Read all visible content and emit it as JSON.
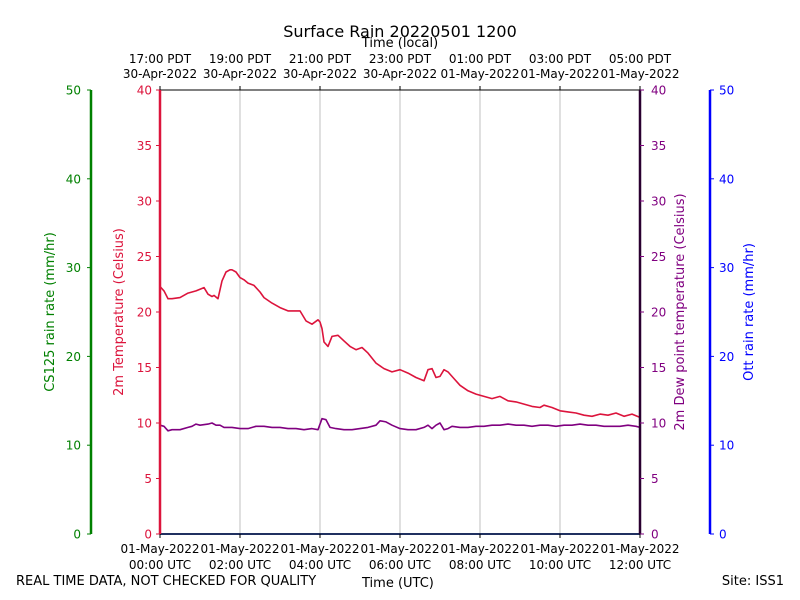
{
  "chart_data": {
    "type": "line",
    "title": "Surface Rain 20220501 1200",
    "top_axis_label": "Time (local)",
    "xlabel": "Time (UTC)",
    "x_ticks_utc": [
      [
        "01-May-2022",
        "00:00 UTC"
      ],
      [
        "01-May-2022",
        "02:00 UTC"
      ],
      [
        "01-May-2022",
        "04:00 UTC"
      ],
      [
        "01-May-2022",
        "06:00 UTC"
      ],
      [
        "01-May-2022",
        "08:00 UTC"
      ],
      [
        "01-May-2022",
        "10:00 UTC"
      ],
      [
        "01-May-2022",
        "12:00 UTC"
      ]
    ],
    "x_ticks_local": [
      [
        "17:00 PDT",
        "30-Apr-2022"
      ],
      [
        "19:00 PDT",
        "30-Apr-2022"
      ],
      [
        "21:00 PDT",
        "30-Apr-2022"
      ],
      [
        "23:00 PDT",
        "30-Apr-2022"
      ],
      [
        "01:00 PDT",
        "01-May-2022"
      ],
      [
        "03:00 PDT",
        "01-May-2022"
      ],
      [
        "05:00 PDT",
        "01-May-2022"
      ]
    ],
    "x_hours_range": [
      0,
      12
    ],
    "grid_vertical": true,
    "axes": {
      "cs125": {
        "label": "CS125 rain rate (mm/hr)",
        "ylim": [
          0,
          50
        ],
        "ticks": [
          "0",
          "10",
          "20",
          "30",
          "40",
          "50"
        ],
        "color": "#008000"
      },
      "temp": {
        "label": "2m Temperature (Celsius)",
        "ylim": [
          0,
          40
        ],
        "ticks": [
          "0",
          "5",
          "10",
          "15",
          "20",
          "25",
          "30",
          "35",
          "40"
        ],
        "color": "#dc143c"
      },
      "dew": {
        "label": "2m Dew point temperature (Celsius)",
        "ylim": [
          0,
          40
        ],
        "ticks": [
          "0",
          "5",
          "10",
          "15",
          "20",
          "25",
          "30",
          "35",
          "40"
        ],
        "color": "#800080"
      },
      "ott": {
        "label": "Ott rain rate (mm/hr)",
        "ylim": [
          0,
          50
        ],
        "ticks": [
          "0",
          "10",
          "20",
          "30",
          "40",
          "50"
        ],
        "color": "#0000ff"
      }
    },
    "series": [
      {
        "key": "temperature",
        "color": "#dc143c",
        "hours": [
          0,
          0.1,
          0.2,
          0.3,
          0.5,
          0.7,
          0.9,
          1.1,
          1.2,
          1.3,
          1.35,
          1.45,
          1.55,
          1.65,
          1.75,
          1.8,
          1.9,
          2.0,
          2.1,
          2.2,
          2.35,
          2.5,
          2.6,
          2.8,
          3.0,
          3.2,
          3.4,
          3.5,
          3.65,
          3.8,
          3.95,
          4.0,
          4.05,
          4.1,
          4.2,
          4.3,
          4.45,
          4.6,
          4.75,
          4.9,
          5.05,
          5.2,
          5.4,
          5.6,
          5.8,
          6.0,
          6.2,
          6.4,
          6.6,
          6.7,
          6.8,
          6.9,
          7.0,
          7.1,
          7.2,
          7.35,
          7.5,
          7.7,
          7.9,
          8.1,
          8.3,
          8.5,
          8.7,
          8.9,
          9.1,
          9.3,
          9.5,
          9.6,
          9.8,
          10.0,
          10.2,
          10.4,
          10.6,
          10.8,
          11.0,
          11.2,
          11.4,
          11.6,
          11.8,
          12.0
        ],
        "values": [
          22.3,
          21.9,
          21.2,
          21.2,
          21.3,
          21.7,
          21.9,
          22.2,
          21.6,
          21.4,
          21.5,
          21.2,
          22.8,
          23.6,
          23.8,
          23.8,
          23.6,
          23.1,
          22.9,
          22.6,
          22.4,
          21.8,
          21.3,
          20.8,
          20.4,
          20.1,
          20.1,
          20.1,
          19.2,
          18.9,
          19.3,
          19.1,
          18.5,
          17.3,
          16.9,
          17.8,
          17.9,
          17.4,
          16.9,
          16.6,
          16.8,
          16.3,
          15.4,
          14.9,
          14.6,
          14.8,
          14.5,
          14.1,
          13.8,
          14.8,
          14.9,
          14.1,
          14.2,
          14.8,
          14.6,
          14.0,
          13.4,
          12.9,
          12.6,
          12.4,
          12.2,
          12.4,
          12.0,
          11.9,
          11.7,
          11.5,
          11.4,
          11.6,
          11.4,
          11.1,
          11.0,
          10.9,
          10.7,
          10.6,
          10.8,
          10.7,
          10.9,
          10.6,
          10.8,
          10.5
        ]
      },
      {
        "key": "dewpoint",
        "color": "#800080",
        "hours": [
          0,
          0.1,
          0.2,
          0.3,
          0.5,
          0.7,
          0.8,
          0.9,
          1.0,
          1.2,
          1.3,
          1.4,
          1.5,
          1.6,
          1.7,
          1.8,
          2.0,
          2.2,
          2.4,
          2.6,
          2.8,
          3.0,
          3.2,
          3.4,
          3.6,
          3.8,
          3.95,
          4.05,
          4.15,
          4.25,
          4.4,
          4.6,
          4.8,
          5.0,
          5.2,
          5.4,
          5.5,
          5.65,
          5.8,
          6.0,
          6.2,
          6.4,
          6.6,
          6.7,
          6.8,
          6.9,
          7.0,
          7.1,
          7.2,
          7.3,
          7.5,
          7.7,
          7.9,
          8.1,
          8.3,
          8.5,
          8.7,
          8.9,
          9.1,
          9.3,
          9.5,
          9.7,
          9.9,
          10.1,
          10.3,
          10.5,
          10.7,
          10.9,
          11.1,
          11.3,
          11.5,
          11.7,
          11.9,
          12.0
        ],
        "values": [
          9.8,
          9.7,
          9.3,
          9.4,
          9.4,
          9.6,
          9.7,
          9.9,
          9.8,
          9.9,
          10.0,
          9.8,
          9.8,
          9.6,
          9.6,
          9.6,
          9.5,
          9.5,
          9.7,
          9.7,
          9.6,
          9.6,
          9.5,
          9.5,
          9.4,
          9.5,
          9.4,
          10.4,
          10.3,
          9.6,
          9.5,
          9.4,
          9.4,
          9.5,
          9.6,
          9.8,
          10.2,
          10.1,
          9.8,
          9.5,
          9.4,
          9.4,
          9.6,
          9.8,
          9.5,
          9.8,
          10.0,
          9.4,
          9.5,
          9.7,
          9.6,
          9.6,
          9.7,
          9.7,
          9.8,
          9.8,
          9.9,
          9.8,
          9.8,
          9.7,
          9.8,
          9.8,
          9.7,
          9.8,
          9.8,
          9.9,
          9.8,
          9.8,
          9.7,
          9.7,
          9.7,
          9.8,
          9.7,
          9.6
        ]
      },
      {
        "key": "cs125_rain",
        "color": "#008000",
        "hours": [
          0,
          12
        ],
        "values": [
          0,
          0
        ]
      },
      {
        "key": "ott_rain",
        "color": "#0000ff",
        "hours": [
          0,
          12
        ],
        "values": [
          0,
          0
        ]
      }
    ]
  },
  "footer": {
    "left": "REAL TIME DATA, NOT CHECKED FOR QUALITY",
    "center": "Time (UTC)",
    "right": "Site: ISS1"
  }
}
